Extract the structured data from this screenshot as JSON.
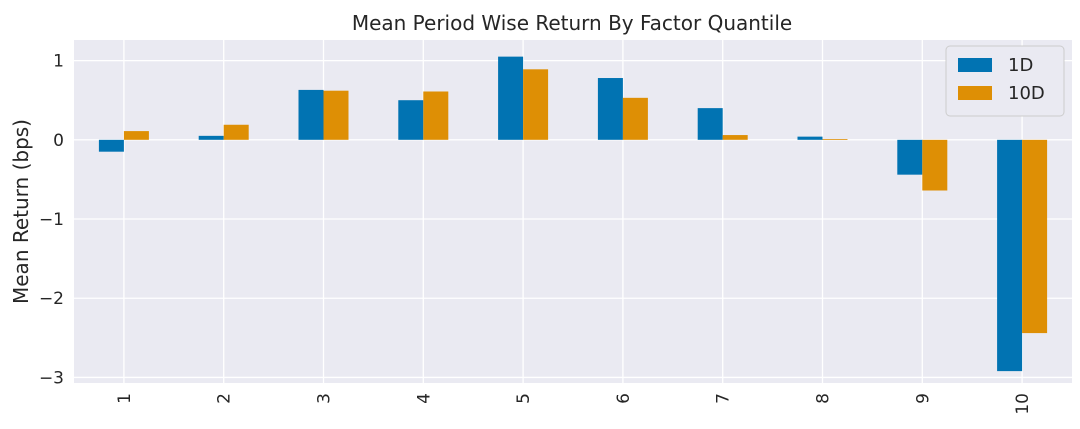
{
  "chart_data": {
    "type": "bar",
    "title": "Mean Period Wise Return By Factor Quantile",
    "xlabel": "",
    "ylabel": "Mean Return (bps)",
    "categories": [
      "1",
      "2",
      "3",
      "4",
      "5",
      "6",
      "7",
      "8",
      "9",
      "10"
    ],
    "series": [
      {
        "name": "1D",
        "color": "#0173b2",
        "values": [
          -0.15,
          0.05,
          0.63,
          0.5,
          1.05,
          0.78,
          0.4,
          0.04,
          -0.44,
          -2.92
        ]
      },
      {
        "name": "10D",
        "color": "#de8f05",
        "values": [
          0.11,
          0.19,
          0.62,
          0.61,
          0.89,
          0.53,
          0.06,
          0.01,
          -0.64,
          -2.44
        ]
      }
    ],
    "yticks": [
      1,
      0,
      -1,
      -2,
      -3
    ],
    "ytick_labels": [
      "1",
      "0",
      "−1",
      "−2",
      "−3"
    ],
    "ylim": [
      -3.07,
      1.26
    ],
    "grid": true,
    "legend_position": "top-right",
    "background": "#eaeaf2"
  }
}
